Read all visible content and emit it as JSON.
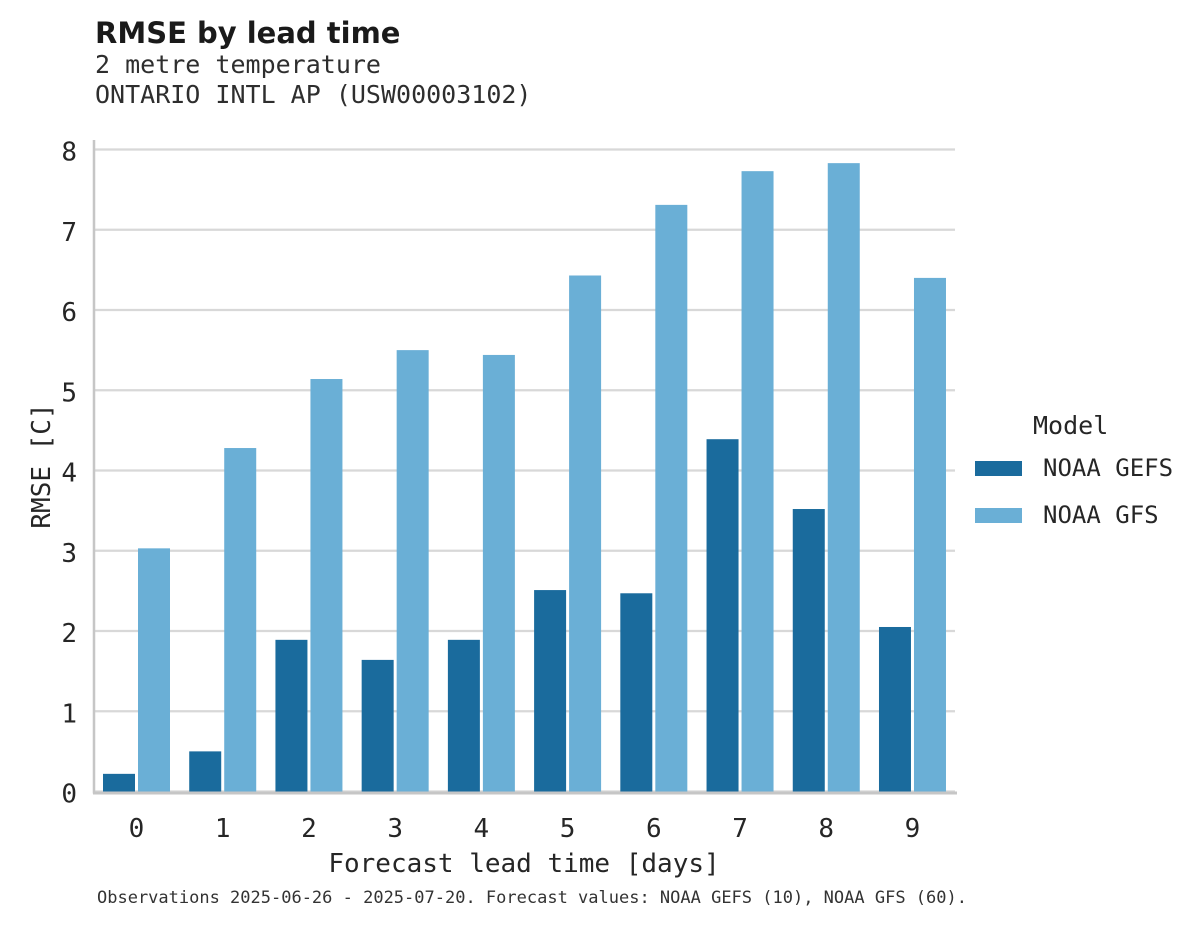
{
  "header": {
    "title": "RMSE by lead time",
    "subtitle_line1": "2 metre temperature",
    "subtitle_line2": "ONTARIO INTL AP (USW00003102)"
  },
  "legend": {
    "title": "Model"
  },
  "footer": {
    "text": "Observations 2025-06-26 - 2025-07-20. Forecast values: NOAA GEFS (10), NOAA GFS (60)."
  },
  "chart_data": {
    "type": "bar",
    "title": "RMSE by lead time",
    "subtitle_line1": "2 metre temperature",
    "subtitle_line2": "ONTARIO INTL AP (USW00003102)",
    "xlabel": "Forecast lead time [days]",
    "ylabel": "RMSE [C]",
    "categories": [
      "0",
      "1",
      "2",
      "3",
      "4",
      "5",
      "6",
      "7",
      "8",
      "9"
    ],
    "series": [
      {
        "name": "NOAA GEFS",
        "color": "#1a6b9d",
        "values": [
          0.22,
          0.5,
          1.89,
          1.64,
          1.89,
          2.51,
          2.47,
          4.39,
          3.52,
          2.05
        ]
      },
      {
        "name": "NOAA GFS",
        "color": "#6aafd6",
        "values": [
          3.03,
          4.28,
          5.14,
          5.5,
          5.44,
          6.43,
          7.31,
          7.73,
          7.83,
          6.4
        ]
      }
    ],
    "ylim": [
      0,
      8.1
    ],
    "yticks": [
      0,
      1,
      2,
      3,
      4,
      5,
      6,
      7,
      8
    ],
    "grid": true,
    "legend_title": "Model",
    "legend_position": "right",
    "colors": {
      "gridline": "#d8d8d8",
      "spine": "#c6c6c6",
      "text": "#262626"
    }
  }
}
